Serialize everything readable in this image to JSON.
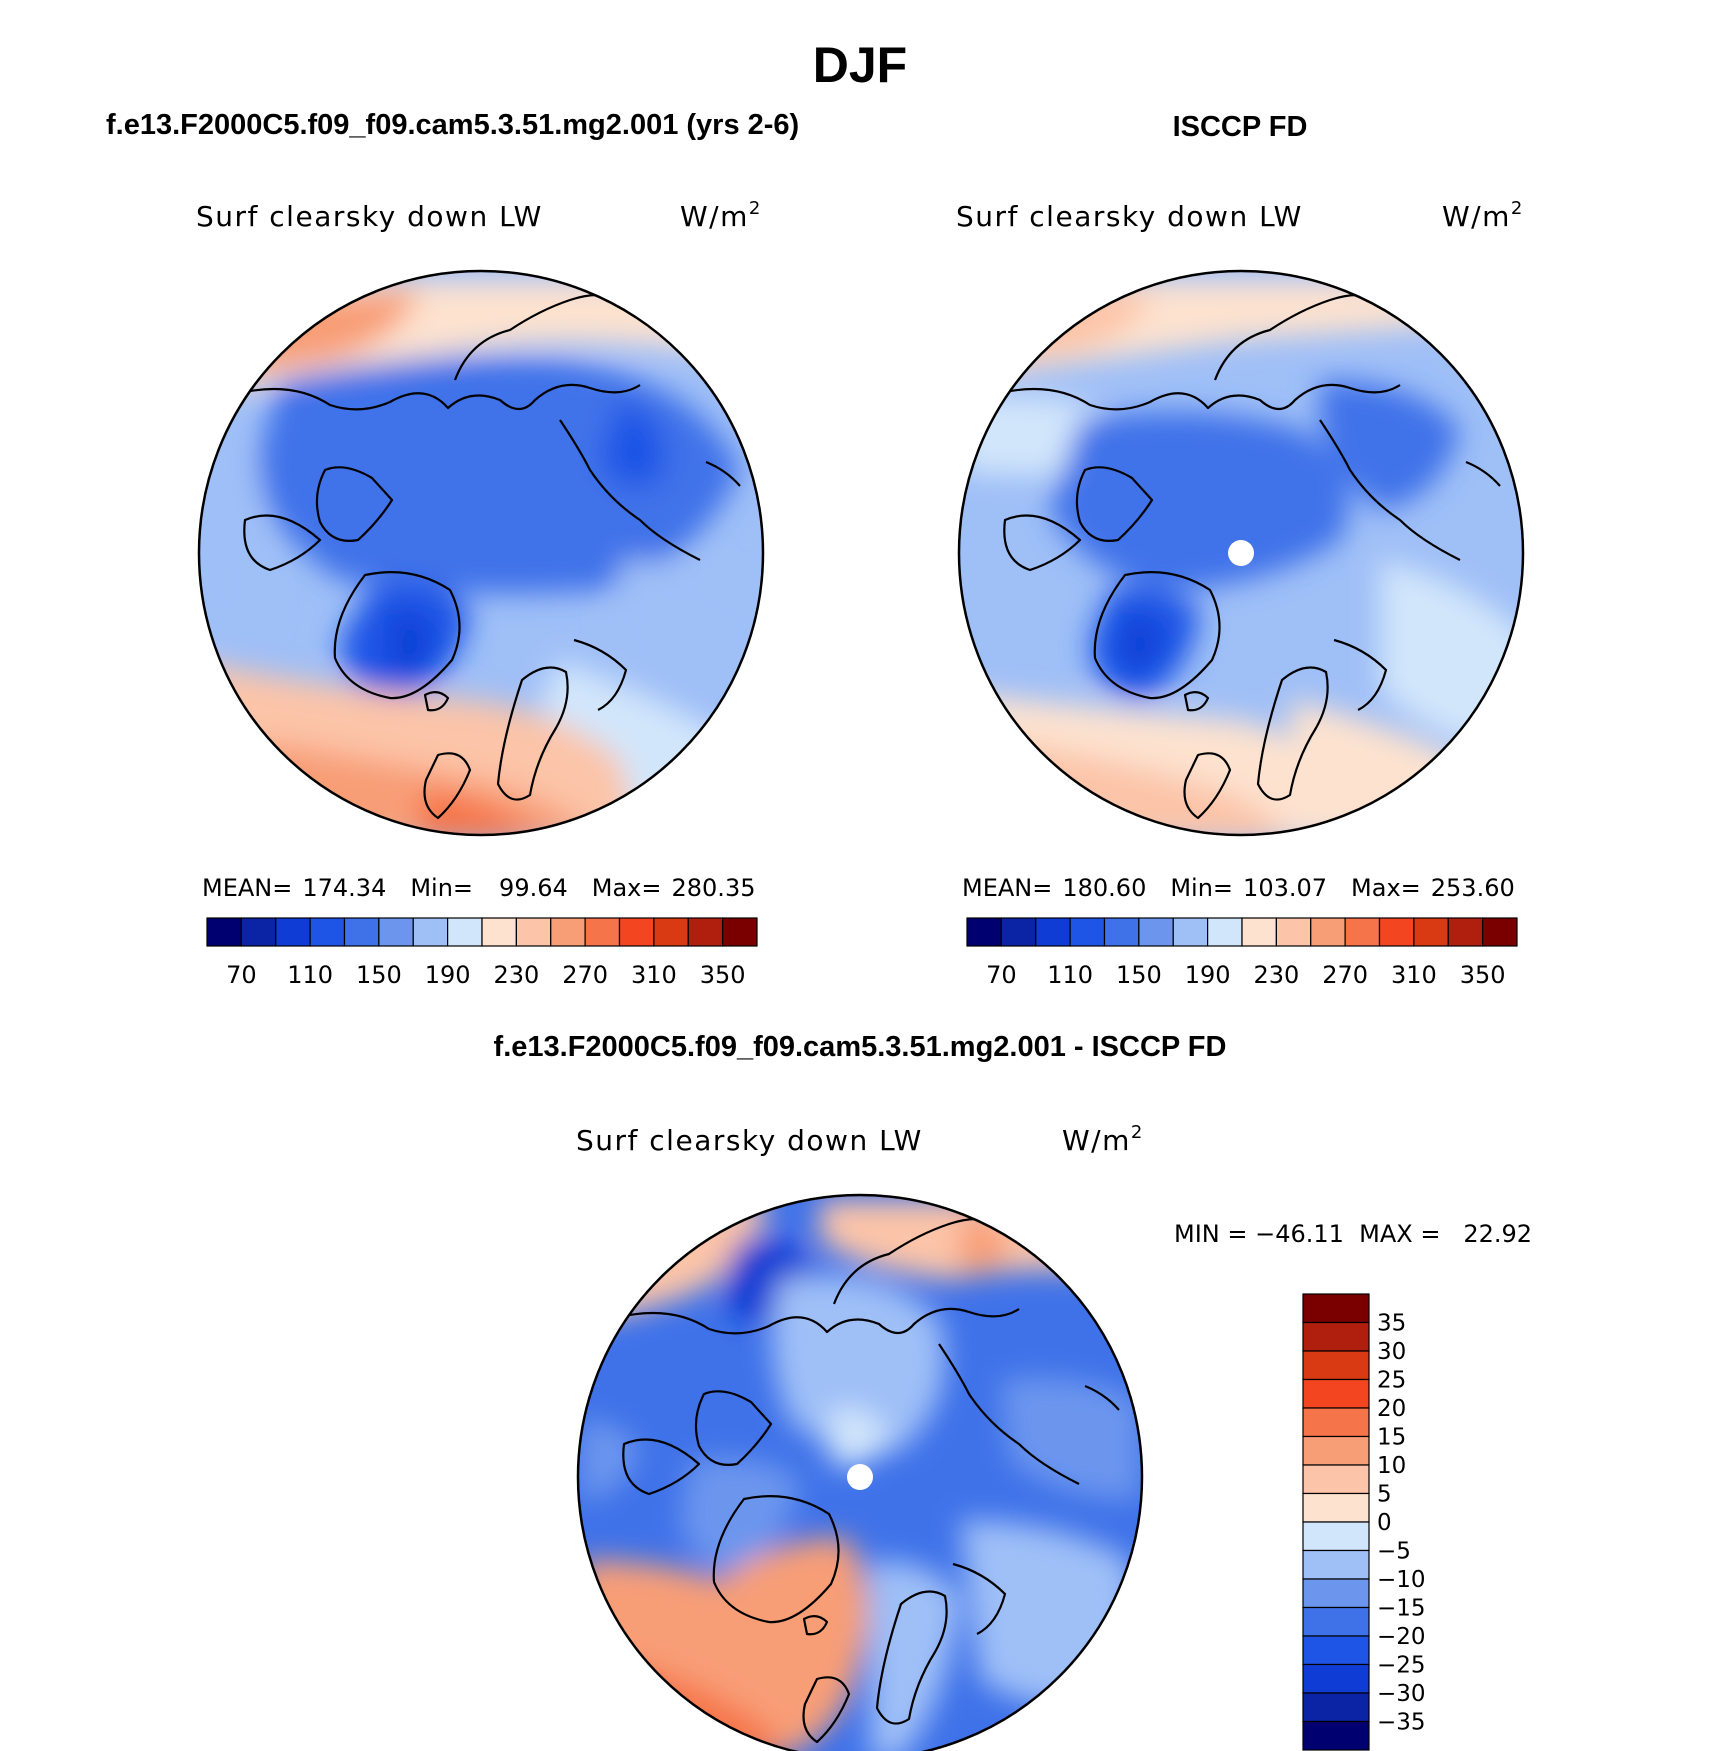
{
  "figure_title": "DJF",
  "chart_data": [
    {
      "type": "heatmap",
      "projection": "north-polar-stereographic",
      "title": "f.e13.F2000C5.f09_f09.cam5.3.51.mg2.001 (yrs 2-6)",
      "variable": "Surf clearsky down LW",
      "units": "W/m",
      "units_exp": "2",
      "stats": {
        "mean_label": "MEAN=",
        "mean": "174.34",
        "min_label": "Min=",
        "min": "99.64",
        "max_label": "Max=",
        "max": "280.35"
      },
      "colorbar": {
        "orientation": "horizontal",
        "levels": [
          70,
          90,
          110,
          130,
          150,
          170,
          190,
          210,
          230,
          250,
          270,
          290,
          310,
          330,
          350
        ],
        "tick_labels": [
          "70",
          "110",
          "150",
          "190",
          "230",
          "270",
          "310",
          "350"
        ]
      }
    },
    {
      "type": "heatmap",
      "projection": "north-polar-stereographic",
      "title": "ISCCP FD",
      "variable": "Surf clearsky down LW",
      "units": "W/m",
      "units_exp": "2",
      "stats": {
        "mean_label": "MEAN=",
        "mean": "180.60",
        "min_label": "Min=",
        "min": "103.07",
        "max_label": "Max=",
        "max": "253.60"
      },
      "colorbar": {
        "orientation": "horizontal",
        "levels": [
          70,
          90,
          110,
          130,
          150,
          170,
          190,
          210,
          230,
          250,
          270,
          290,
          310,
          330,
          350
        ],
        "tick_labels": [
          "70",
          "110",
          "150",
          "190",
          "230",
          "270",
          "310",
          "350"
        ]
      }
    },
    {
      "type": "heatmap",
      "projection": "north-polar-stereographic",
      "title": "f.e13.F2000C5.f09_f09.cam5.3.51.mg2.001 - ISCCP FD",
      "variable": "Surf clearsky down LW",
      "units": "W/m",
      "units_exp": "2",
      "stats_text": "MIN = −46.11  MAX =   22.92",
      "colorbar": {
        "orientation": "vertical",
        "tick_labels": [
          "35",
          "30",
          "25",
          "20",
          "15",
          "10",
          "5",
          "0",
          "−5",
          "−10",
          "−15",
          "−20",
          "−25",
          "−30",
          "−35"
        ]
      }
    }
  ],
  "colors": {
    "bar16": [
      "#000070",
      "#0b24a6",
      "#0f3cd4",
      "#1f55e6",
      "#3f72e9",
      "#6c96ee",
      "#9fbff7",
      "#d2e6fb",
      "#fde2cf",
      "#fcc4a8",
      "#f89e77",
      "#f6744a",
      "#f24520",
      "#d93a13",
      "#b01f0d",
      "#7a0000"
    ],
    "diff16": [
      "#000070",
      "#0b24a6",
      "#0f3cd4",
      "#1f55e6",
      "#3f72e9",
      "#6c96ee",
      "#9fbff7",
      "#d2e6fb",
      "#fde2cf",
      "#fcc4a8",
      "#f89e77",
      "#f6744a",
      "#f24520",
      "#d93a13",
      "#b01f0d",
      "#7a0000"
    ]
  }
}
